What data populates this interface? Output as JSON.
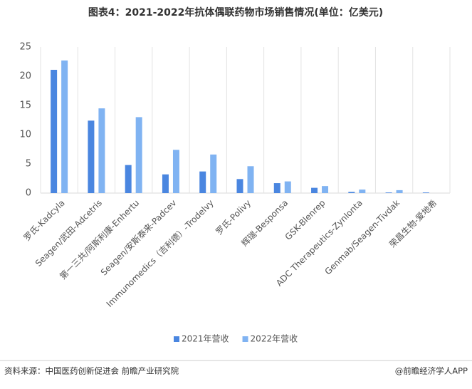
{
  "chart_data": {
    "type": "bar",
    "title": "图表4：2021-2022年抗体偶联药物市场销售情况(单位：亿美元)",
    "categories": [
      "罗氏-Kadcyla",
      "Seagen/武田-Adcetris",
      "第一三共/阿斯利康-Enhertu",
      "Seagen/安斯泰来-Padcev",
      "Immunomedics（吉利德）-Trodelvy",
      "罗氏-Polivy",
      "辉瑞-Besponsa",
      "GSK-Blenrep",
      "ADC Therapeutics-Zynlonta",
      "Genmab/Seagen-Tivdak",
      "荣昌生物-爱地希"
    ],
    "series": [
      {
        "name": "2021年营收",
        "color": "#4a86e0",
        "values": [
          21.1,
          12.4,
          4.8,
          3.2,
          3.7,
          2.4,
          1.7,
          0.9,
          0.2,
          0.1,
          0.1
        ]
      },
      {
        "name": "2022年营收",
        "color": "#80b3f2",
        "values": [
          22.7,
          14.5,
          13.0,
          7.4,
          6.6,
          4.6,
          2.0,
          1.2,
          0.6,
          0.5,
          null
        ]
      }
    ],
    "ylim": [
      0,
      25
    ],
    "yticks": [
      0,
      5,
      10,
      15,
      20,
      25
    ],
    "source": "资料来源：中国医药创新促进会 前瞻产业研究院",
    "credit": "@前瞻经济学人APP"
  }
}
